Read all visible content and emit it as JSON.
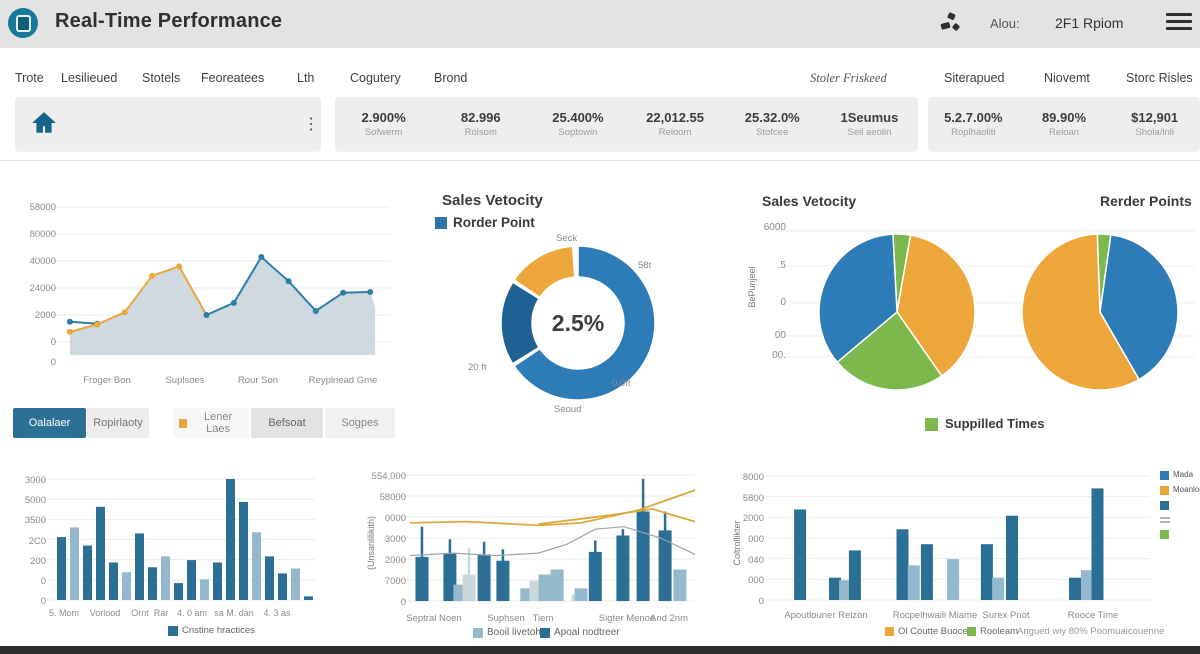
{
  "palette": {
    "dark": "#2b6f94",
    "light": "#94b9cc",
    "lighter": "#ccd7dd",
    "orange": "#eda63a",
    "teal": "#2e7fa5",
    "green": "#7cb84c",
    "blue": "#2d7cb7",
    "darkblue": "#1f6193",
    "yellow": "#d9a93c",
    "gray": "#9aa5ab",
    "areafill": "#c9d5dd"
  },
  "header": {
    "title": "Real-Time Performance",
    "alou_label": "Alou:",
    "alou_value": "2F1 Rpiom"
  },
  "nav": {
    "left": [
      "Trote",
      "Lesilieued",
      "Stotels",
      "Feoreatees",
      "Lth",
      "Cogutery",
      "Brond"
    ],
    "right": [
      "Stoler Friskeed",
      "Siterapued",
      "Niovemt",
      "Storc Risles"
    ]
  },
  "kpis": {
    "group1": [
      {
        "value": "2.900%",
        "label": "Sofwerm"
      },
      {
        "value": "82.996",
        "label": "Rolsom"
      },
      {
        "value": "25.400%",
        "label": "Soptowin"
      },
      {
        "value": "22,012.55",
        "label": "Reloom"
      },
      {
        "value": "25.32.0%",
        "label": "Stofcee"
      },
      {
        "value": "1Seumus",
        "label": "Seil aeolin"
      }
    ],
    "group2": [
      {
        "value": "5.2.7.00%",
        "label": "Roplhaoliti"
      },
      {
        "value": "89.90%",
        "label": "Reloan"
      },
      {
        "value": "$12,901",
        "label": "Shola/lnli"
      }
    ]
  },
  "filter_buttons": [
    {
      "label": "Oalalaer",
      "active": true
    },
    {
      "label": "Ropirlaoty",
      "active": false
    },
    {
      "label": "Lener Laes",
      "active": false,
      "icon": "orange-square"
    },
    {
      "label": "Befsoat",
      "active": false
    },
    {
      "label": "Sogpes",
      "active": false
    }
  ],
  "donut_section": {
    "title": "Sales Vetocity",
    "legend": "Rorder Point",
    "center_value": "2.5%",
    "labels": {
      "top": "Seck",
      "right": "58t",
      "bottom_right": "0.0ft",
      "bottom": "Seoud",
      "left": "20 ft"
    }
  },
  "pies_section": {
    "title_left": "Sales Vetocity",
    "title_right": "Rerder Points",
    "yticks": [
      "6000",
      ".5",
      "0",
      "00",
      "00."
    ],
    "ylabel": "BePunjeel",
    "legend": "Suppilled Times"
  },
  "bottom_left": {
    "legend": "Cnstine hractices"
  },
  "chart_data": [
    {
      "id": "chart-flow",
      "type": "area",
      "yticks": [
        "58000",
        "80000",
        "40000",
        "24000",
        "2000",
        "0",
        "0"
      ],
      "xticks": [
        "Froger Bon",
        "Suplsoes",
        "Rour Son",
        "Reyplnead Gme"
      ],
      "area": [
        [
          0.03,
          0.075
        ],
        [
          0.113,
          0.13
        ],
        [
          0.196,
          0.22
        ],
        [
          0.279,
          0.49
        ],
        [
          0.361,
          0.56
        ],
        [
          0.444,
          0.2
        ],
        [
          0.527,
          0.29
        ],
        [
          0.61,
          0.63
        ],
        [
          0.693,
          0.45
        ],
        [
          0.775,
          0.23
        ],
        [
          0.858,
          0.365
        ],
        [
          0.94,
          0.37
        ],
        [
          0.955,
          0.26
        ]
      ],
      "series": [
        {
          "name": "teal-lead",
          "color": "teal",
          "dots": true,
          "pts": [
            [
              0.03,
              0.15
            ],
            [
              0.113,
              0.135
            ]
          ]
        },
        {
          "name": "orange-seg",
          "color": "orange",
          "dots": true,
          "pts": [
            [
              0.03,
              0.075
            ],
            [
              0.113,
              0.13
            ],
            [
              0.196,
              0.22
            ],
            [
              0.279,
              0.49
            ],
            [
              0.361,
              0.56
            ],
            [
              0.444,
              0.2
            ]
          ]
        },
        {
          "name": "teal-main",
          "color": "teal",
          "dots": true,
          "pts": [
            [
              0.444,
              0.2
            ],
            [
              0.527,
              0.29
            ],
            [
              0.61,
              0.63
            ],
            [
              0.693,
              0.45
            ],
            [
              0.775,
              0.23
            ],
            [
              0.858,
              0.365
            ],
            [
              0.94,
              0.37
            ]
          ]
        }
      ]
    },
    {
      "id": "chart-donut",
      "type": "donut",
      "slices": [
        {
          "a0": 0,
          "a1": 236,
          "color": "blue"
        },
        {
          "a0": 238,
          "a1": 302,
          "color": "darkblue"
        },
        {
          "a0": 304,
          "a1": 356,
          "color": "orange"
        }
      ]
    },
    {
      "id": "chart-pie1",
      "type": "pie",
      "slices": [
        {
          "a0": -3,
          "a1": 10,
          "color": "green"
        },
        {
          "a0": 10,
          "a1": 145,
          "color": "orange"
        },
        {
          "a0": 145,
          "a1": 230,
          "color": "green"
        },
        {
          "a0": 230,
          "a1": 357,
          "color": "blue"
        }
      ]
    },
    {
      "id": "chart-pie2",
      "type": "pie",
      "slices": [
        {
          "a0": -2,
          "a1": 8,
          "color": "green"
        },
        {
          "a0": 8,
          "a1": 150,
          "color": "blue"
        },
        {
          "a0": 150,
          "a1": 358,
          "color": "orange"
        }
      ]
    },
    {
      "id": "chart-barsA",
      "type": "bar",
      "yticks": [
        "3000",
        "5000",
        "3500",
        "2C0",
        "200",
        "0",
        "0"
      ],
      "xticks": [
        "5. Mom",
        "Vorlood",
        "Ornt",
        "Rar",
        "4. 0 am",
        "sa",
        "M. dan",
        "4. 3 as"
      ],
      "bars": [
        {
          "x": 0.025,
          "v": 0.52,
          "c": "dark"
        },
        {
          "x": 0.075,
          "v": 0.6,
          "c": "light"
        },
        {
          "x": 0.125,
          "v": 0.45,
          "c": "dark"
        },
        {
          "x": 0.175,
          "v": 0.77,
          "c": "dark"
        },
        {
          "x": 0.225,
          "v": 0.31,
          "c": "dark"
        },
        {
          "x": 0.275,
          "v": 0.23,
          "c": "light"
        },
        {
          "x": 0.325,
          "v": 0.55,
          "c": "dark"
        },
        {
          "x": 0.375,
          "v": 0.27,
          "c": "dark"
        },
        {
          "x": 0.425,
          "v": 0.36,
          "c": "light"
        },
        {
          "x": 0.475,
          "v": 0.14,
          "c": "dark"
        },
        {
          "x": 0.525,
          "v": 0.33,
          "c": "dark"
        },
        {
          "x": 0.575,
          "v": 0.17,
          "c": "light"
        },
        {
          "x": 0.625,
          "v": 0.31,
          "c": "dark"
        },
        {
          "x": 0.675,
          "v": 1.0,
          "c": "dark"
        },
        {
          "x": 0.725,
          "v": 0.81,
          "c": "dark"
        },
        {
          "x": 0.775,
          "v": 0.56,
          "c": "light"
        },
        {
          "x": 0.825,
          "v": 0.36,
          "c": "dark"
        },
        {
          "x": 0.875,
          "v": 0.22,
          "c": "dark"
        },
        {
          "x": 0.925,
          "v": 0.26,
          "c": "light"
        },
        {
          "x": 0.975,
          "v": 0.03,
          "c": "dark"
        }
      ]
    },
    {
      "id": "chart-combo",
      "type": "combo",
      "yticks": [
        "554,000",
        "58000",
        "0000",
        "3000",
        "2000",
        "7000",
        "0"
      ],
      "ylabel": "(Unsanlilikith)",
      "xticks": [
        "Septral Noen",
        "Suphsen",
        "Tiem",
        "Sigter Menoe",
        "And 2nm"
      ],
      "bars": [
        {
          "x": 0.042,
          "v": 0.35,
          "w": 0.59,
          "c": "dark"
        },
        {
          "x": 0.14,
          "v": 0.38,
          "w": 0.49,
          "c": "dark"
        },
        {
          "x": 0.175,
          "v": 0.13,
          "c": "light"
        },
        {
          "x": 0.207,
          "v": 0.21,
          "w": 0.42,
          "c": "lighter"
        },
        {
          "x": 0.26,
          "v": 0.37,
          "w": 0.47,
          "c": "dark"
        },
        {
          "x": 0.326,
          "v": 0.32,
          "w": 0.41,
          "c": "dark"
        },
        {
          "x": 0.41,
          "v": 0.1,
          "c": "light"
        },
        {
          "x": 0.442,
          "v": 0.16,
          "c": "lighter"
        },
        {
          "x": 0.474,
          "v": 0.21,
          "c": "light"
        },
        {
          "x": 0.516,
          "v": 0.25,
          "c": "light"
        },
        {
          "x": 0.59,
          "v": 0.05,
          "c": "lighter"
        },
        {
          "x": 0.6,
          "v": 0.1,
          "c": "light"
        },
        {
          "x": 0.65,
          "v": 0.39,
          "w": 0.48,
          "c": "dark"
        },
        {
          "x": 0.747,
          "v": 0.52,
          "w": 0.57,
          "c": "dark"
        },
        {
          "x": 0.818,
          "v": 0.71,
          "w": 0.97,
          "c": "dark"
        },
        {
          "x": 0.895,
          "v": 0.56,
          "w": 0.71,
          "c": "dark"
        },
        {
          "x": 0.947,
          "v": 0.25,
          "c": "light"
        }
      ],
      "lines": [
        {
          "color": "yellow",
          "pts": [
            [
              0,
              0.62
            ],
            [
              0.2,
              0.63
            ],
            [
              0.45,
              0.6
            ],
            [
              0.6,
              0.62
            ],
            [
              0.8,
              0.72
            ],
            [
              1.0,
              0.88
            ]
          ]
        },
        {
          "color": "yellow",
          "pts": [
            [
              0.45,
              0.61
            ],
            [
              0.7,
              0.68
            ],
            [
              0.85,
              0.73
            ],
            [
              1.0,
              0.63
            ]
          ]
        },
        {
          "color": "gray",
          "pts": [
            [
              0,
              0.36
            ],
            [
              0.15,
              0.38
            ],
            [
              0.3,
              0.36
            ],
            [
              0.45,
              0.38
            ],
            [
              0.55,
              0.45
            ],
            [
              0.65,
              0.57
            ],
            [
              0.75,
              0.59
            ],
            [
              0.88,
              0.5
            ],
            [
              1.0,
              0.37
            ]
          ]
        }
      ],
      "legend": [
        {
          "c": "light",
          "label": "Booil livetoh"
        },
        {
          "c": "dark",
          "label": "Apoal nodtreer"
        }
      ]
    },
    {
      "id": "chart-barsB",
      "type": "combo",
      "yticks": [
        "8000",
        "5800",
        "2000",
        "000",
        "040",
        "000",
        "0"
      ],
      "ylabel": "Coltrollikter",
      "xticks": [
        "Apoutlouner Relzon",
        "Rocpelhwaili Miame",
        "Surex Pnot",
        "Rooce Time"
      ],
      "bars": [
        {
          "x": 0.067,
          "v": 0.73,
          "c": "dark"
        },
        {
          "x": 0.16,
          "v": 0.18,
          "c": "dark"
        },
        {
          "x": 0.187,
          "v": 0.16,
          "c": "light"
        },
        {
          "x": 0.213,
          "v": 0.4,
          "c": "dark"
        },
        {
          "x": 0.34,
          "v": 0.57,
          "c": "dark"
        },
        {
          "x": 0.37,
          "v": 0.28,
          "c": "light"
        },
        {
          "x": 0.405,
          "v": 0.45,
          "c": "dark"
        },
        {
          "x": 0.475,
          "v": 0.33,
          "c": "light"
        },
        {
          "x": 0.565,
          "v": 0.45,
          "c": "dark"
        },
        {
          "x": 0.595,
          "v": 0.18,
          "c": "light"
        },
        {
          "x": 0.632,
          "v": 0.68,
          "c": "dark"
        },
        {
          "x": 0.8,
          "v": 0.18,
          "c": "dark"
        },
        {
          "x": 0.832,
          "v": 0.24,
          "c": "light"
        },
        {
          "x": 0.86,
          "v": 0.9,
          "c": "dark"
        }
      ],
      "lines": [],
      "legend_right": [
        {
          "c": "blue",
          "label": "Mada"
        },
        {
          "c": "orange",
          "label": "Moanlon"
        },
        {
          "c": "dark",
          "label": ""
        },
        {
          "c": "grayline",
          "label": ""
        },
        {
          "c": "green",
          "label": ""
        }
      ],
      "legend_bottom": [
        {
          "c": "orange",
          "label": "Ol Coutte Buoces"
        },
        {
          "c": "green",
          "label": "Rooleam"
        }
      ],
      "note": "Angued wiy 80% Poomuaicouenne"
    }
  ]
}
